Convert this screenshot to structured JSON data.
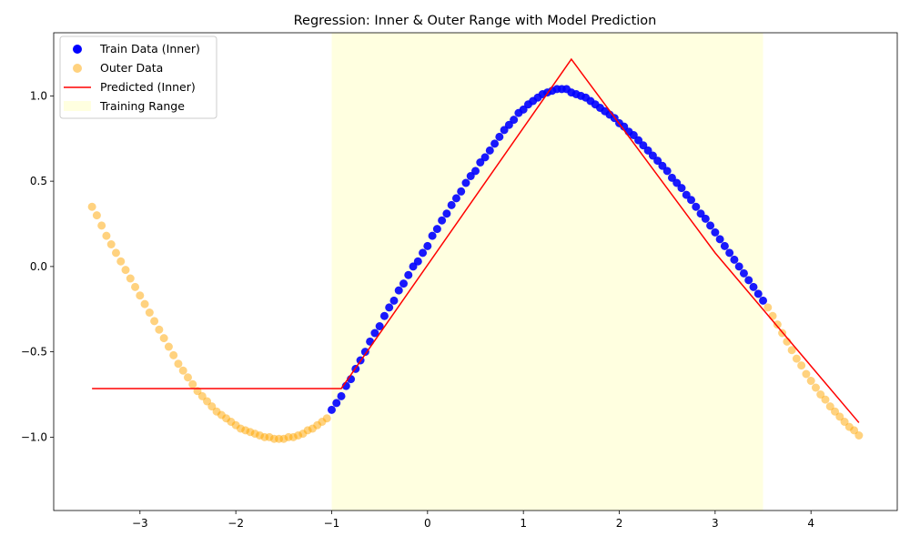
{
  "chart_data": {
    "type": "scatter",
    "title": "Regression: Inner & Outer Range with Model Prediction",
    "xlabel": "",
    "ylabel": "",
    "xlim": [
      -3.9,
      4.9
    ],
    "ylim": [
      -1.43,
      1.37
    ],
    "x_ticks": [
      -3,
      -2,
      -1,
      0,
      1,
      2,
      3,
      4
    ],
    "y_ticks": [
      -1.0,
      -0.5,
      0.0,
      0.5,
      1.0
    ],
    "x_tick_labels": [
      "−3",
      "−2",
      "−1",
      "0",
      "1",
      "2",
      "3",
      "4"
    ],
    "y_tick_labels": [
      "−1.0",
      "−0.5",
      "0.0",
      "0.5",
      "1.0"
    ],
    "grid": false,
    "legend_position": "top-left",
    "training_range": [
      -1.0,
      3.5
    ],
    "series": [
      {
        "name": "Train Data (Inner)",
        "kind": "scatter",
        "color": "#0000ff",
        "x": [
          -1.0,
          -0.95,
          -0.9,
          -0.85,
          -0.8,
          -0.75,
          -0.7,
          -0.65,
          -0.6,
          -0.55,
          -0.5,
          -0.45,
          -0.4,
          -0.35,
          -0.3,
          -0.25,
          -0.2,
          -0.15,
          -0.1,
          -0.05,
          0.0,
          0.05,
          0.1,
          0.15,
          0.2,
          0.25,
          0.3,
          0.35,
          0.4,
          0.45,
          0.5,
          0.55,
          0.6,
          0.65,
          0.7,
          0.75,
          0.8,
          0.85,
          0.9,
          0.95,
          1.0,
          1.05,
          1.1,
          1.15,
          1.2,
          1.25,
          1.3,
          1.35,
          1.4,
          1.45,
          1.5,
          1.55,
          1.6,
          1.65,
          1.7,
          1.75,
          1.8,
          1.85,
          1.9,
          1.95,
          2.0,
          2.05,
          2.1,
          2.15,
          2.2,
          2.25,
          2.3,
          2.35,
          2.4,
          2.45,
          2.5,
          2.55,
          2.6,
          2.65,
          2.7,
          2.75,
          2.8,
          2.85,
          2.9,
          2.95,
          3.0,
          3.05,
          3.1,
          3.15,
          3.2,
          3.25,
          3.3,
          3.35,
          3.4,
          3.45,
          3.5
        ],
        "y": [
          -0.84,
          -0.8,
          -0.76,
          -0.7,
          -0.66,
          -0.6,
          -0.55,
          -0.5,
          -0.44,
          -0.39,
          -0.35,
          -0.29,
          -0.24,
          -0.2,
          -0.14,
          -0.1,
          -0.05,
          0.0,
          0.03,
          0.08,
          0.12,
          0.18,
          0.22,
          0.27,
          0.31,
          0.36,
          0.4,
          0.44,
          0.49,
          0.53,
          0.56,
          0.61,
          0.64,
          0.68,
          0.72,
          0.76,
          0.8,
          0.83,
          0.86,
          0.9,
          0.92,
          0.95,
          0.97,
          0.99,
          1.01,
          1.02,
          1.03,
          1.04,
          1.04,
          1.04,
          1.02,
          1.01,
          1.0,
          0.99,
          0.97,
          0.95,
          0.93,
          0.91,
          0.89,
          0.87,
          0.84,
          0.82,
          0.79,
          0.77,
          0.74,
          0.71,
          0.68,
          0.65,
          0.62,
          0.59,
          0.56,
          0.52,
          0.49,
          0.46,
          0.42,
          0.39,
          0.35,
          0.31,
          0.28,
          0.24,
          0.2,
          0.16,
          0.12,
          0.08,
          0.04,
          0.0,
          -0.04,
          -0.08,
          -0.12,
          -0.16,
          -0.2
        ]
      },
      {
        "name": "Outer Data",
        "kind": "scatter",
        "color": "#ffa500",
        "opacity": 0.5,
        "x": [
          -3.5,
          -3.45,
          -3.4,
          -3.35,
          -3.3,
          -3.25,
          -3.2,
          -3.15,
          -3.1,
          -3.05,
          -3.0,
          -2.95,
          -2.9,
          -2.85,
          -2.8,
          -2.75,
          -2.7,
          -2.65,
          -2.6,
          -2.55,
          -2.5,
          -2.45,
          -2.4,
          -2.35,
          -2.3,
          -2.25,
          -2.2,
          -2.15,
          -2.1,
          -2.05,
          -2.0,
          -1.95,
          -1.9,
          -1.85,
          -1.8,
          -1.75,
          -1.7,
          -1.65,
          -1.6,
          -1.55,
          -1.5,
          -1.45,
          -1.4,
          -1.35,
          -1.3,
          -1.25,
          -1.2,
          -1.15,
          -1.1,
          -1.05,
          3.55,
          3.6,
          3.65,
          3.7,
          3.75,
          3.8,
          3.85,
          3.9,
          3.95,
          4.0,
          4.05,
          4.1,
          4.15,
          4.2,
          4.25,
          4.3,
          4.35,
          4.4,
          4.45,
          4.5
        ],
        "y": [
          0.35,
          0.3,
          0.24,
          0.18,
          0.13,
          0.08,
          0.03,
          -0.02,
          -0.07,
          -0.12,
          -0.17,
          -0.22,
          -0.27,
          -0.32,
          -0.37,
          -0.42,
          -0.47,
          -0.52,
          -0.57,
          -0.61,
          -0.65,
          -0.69,
          -0.73,
          -0.76,
          -0.79,
          -0.82,
          -0.85,
          -0.87,
          -0.89,
          -0.91,
          -0.93,
          -0.95,
          -0.96,
          -0.97,
          -0.98,
          -0.99,
          -1.0,
          -1.0,
          -1.01,
          -1.01,
          -1.01,
          -1.0,
          -1.0,
          -0.99,
          -0.98,
          -0.96,
          -0.95,
          -0.93,
          -0.91,
          -0.89,
          -0.24,
          -0.29,
          -0.34,
          -0.39,
          -0.44,
          -0.49,
          -0.54,
          -0.58,
          -0.63,
          -0.67,
          -0.71,
          -0.75,
          -0.78,
          -0.82,
          -0.85,
          -0.88,
          -0.91,
          -0.94,
          -0.96,
          -0.99
        ]
      },
      {
        "name": "Predicted (Inner)",
        "kind": "line",
        "color": "#ff0000",
        "x": [
          -3.5,
          -0.9,
          1.5,
          3.0,
          4.5
        ],
        "y": [
          -0.715,
          -0.715,
          1.215,
          0.08,
          -0.915
        ]
      }
    ],
    "shaded_region": {
      "name": "Training Range",
      "color": "#ffffe0"
    }
  }
}
